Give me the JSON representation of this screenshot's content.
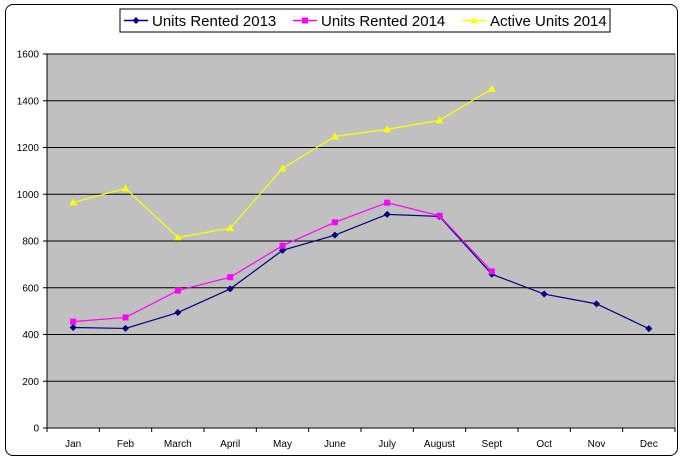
{
  "chart_data": {
    "type": "line",
    "categories": [
      "Jan",
      "Feb",
      "March",
      "April",
      "May",
      "June",
      "July",
      "August",
      "Sept",
      "Oct",
      "Nov",
      "Dec"
    ],
    "ylim": [
      0,
      1600
    ],
    "yticks": [
      0,
      200,
      400,
      600,
      800,
      1000,
      1200,
      1400,
      1600
    ],
    "grid": true,
    "legend_position": "top",
    "plot_background": "#c0c0c0",
    "series": [
      {
        "name": "Units Rented 2013",
        "color": "#000080",
        "marker": "diamond",
        "values": [
          430,
          426,
          494,
          595,
          760,
          825,
          914,
          905,
          658,
          573,
          531,
          425
        ]
      },
      {
        "name": "Units Rented 2014",
        "color": "#ff00ff",
        "marker": "square",
        "values": [
          455,
          473,
          588,
          645,
          780,
          880,
          964,
          908,
          670,
          null,
          null,
          null
        ]
      },
      {
        "name": "Active Units 2014",
        "color": "#ffff00",
        "marker": "triangle",
        "values": [
          965,
          1025,
          815,
          855,
          1110,
          1247,
          1278,
          1316,
          1451,
          null,
          null,
          null
        ]
      }
    ]
  }
}
